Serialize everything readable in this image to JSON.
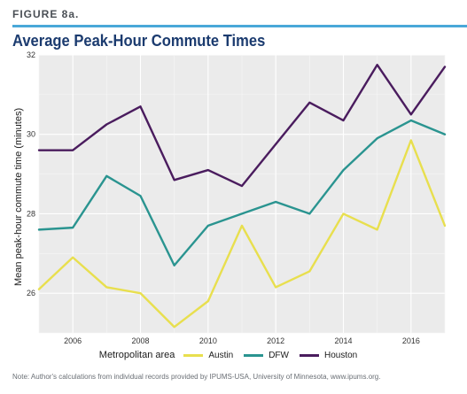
{
  "figure_label": "FIGURE 8a.",
  "note": "Note: Author's calculations from individual records provided by IPUMS-USA, University of Minnesota, www.ipums.org.",
  "colors": {
    "accent_rule": "#4aa8d8",
    "title": "#1b3b6f",
    "panel_bg": "#ebebeb",
    "grid": "#ffffff"
  },
  "chart_data": {
    "type": "line",
    "title": "Average Peak-Hour Commute Times",
    "xlabel": "",
    "ylabel": "Mean peak-hour commute time (minutes)",
    "legend_title": "Metropolitan area",
    "legend_position": "bottom",
    "grid": true,
    "xlim": [
      2005,
      2017
    ],
    "ylim": [
      25,
      32
    ],
    "x": [
      2005,
      2006,
      2007,
      2008,
      2009,
      2010,
      2011,
      2012,
      2013,
      2014,
      2015,
      2016,
      2017
    ],
    "x_ticks": [
      "2006",
      "2008",
      "2010",
      "2012",
      "2014",
      "2016"
    ],
    "x_tick_values": [
      2006,
      2008,
      2010,
      2012,
      2014,
      2016
    ],
    "y_ticks": [
      "26",
      "28",
      "30",
      "32"
    ],
    "y_tick_values": [
      26,
      28,
      30,
      32
    ],
    "series": [
      {
        "name": "Austin",
        "color": "#e8df4e",
        "values": [
          26.1,
          26.9,
          26.15,
          26.0,
          25.15,
          25.8,
          27.7,
          26.15,
          26.55,
          28.0,
          27.6,
          29.85,
          27.7
        ]
      },
      {
        "name": "DFW",
        "color": "#2a9490",
        "values": [
          27.6,
          27.65,
          28.95,
          28.45,
          26.7,
          27.7,
          28.0,
          28.3,
          28.0,
          29.1,
          29.9,
          30.35,
          30.0
        ]
      },
      {
        "name": "Houston",
        "color": "#4a1c5e",
        "values": [
          29.6,
          29.6,
          30.25,
          30.7,
          28.85,
          29.1,
          28.7,
          29.75,
          30.8,
          30.35,
          31.75,
          30.5,
          31.7
        ]
      }
    ]
  }
}
